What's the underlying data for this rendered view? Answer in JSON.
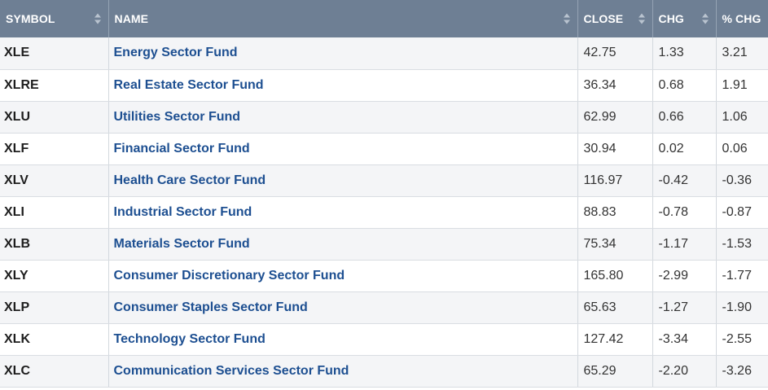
{
  "table": {
    "headers": {
      "symbol": "SYMBOL",
      "name": "NAME",
      "close": "CLOSE",
      "chg": "CHG",
      "pchg": "% CHG"
    },
    "rows": [
      {
        "symbol": "XLE",
        "name": "Energy Sector Fund",
        "close": "42.75",
        "chg": "1.33",
        "pchg": "3.21"
      },
      {
        "symbol": "XLRE",
        "name": "Real Estate Sector Fund",
        "close": "36.34",
        "chg": "0.68",
        "pchg": "1.91"
      },
      {
        "symbol": "XLU",
        "name": "Utilities Sector Fund",
        "close": "62.99",
        "chg": "0.66",
        "pchg": "1.06"
      },
      {
        "symbol": "XLF",
        "name": "Financial Sector Fund",
        "close": "30.94",
        "chg": "0.02",
        "pchg": "0.06"
      },
      {
        "symbol": "XLV",
        "name": "Health Care Sector Fund",
        "close": "116.97",
        "chg": "-0.42",
        "pchg": "-0.36"
      },
      {
        "symbol": "XLI",
        "name": "Industrial Sector Fund",
        "close": "88.83",
        "chg": "-0.78",
        "pchg": "-0.87"
      },
      {
        "symbol": "XLB",
        "name": "Materials Sector Fund",
        "close": "75.34",
        "chg": "-1.17",
        "pchg": "-1.53"
      },
      {
        "symbol": "XLY",
        "name": "Consumer Discretionary Sector Fund",
        "close": "165.80",
        "chg": "-2.99",
        "pchg": "-1.77"
      },
      {
        "symbol": "XLP",
        "name": "Consumer Staples Sector Fund",
        "close": "65.63",
        "chg": "-1.27",
        "pchg": "-1.90"
      },
      {
        "symbol": "XLK",
        "name": "Technology Sector Fund",
        "close": "127.42",
        "chg": "-3.34",
        "pchg": "-2.55"
      },
      {
        "symbol": "XLC",
        "name": "Communication Services Sector Fund",
        "close": "65.29",
        "chg": "-2.20",
        "pchg": "-3.26"
      }
    ]
  },
  "icons": {
    "sort": "sort-both-icon"
  },
  "colors": {
    "header_bg": "#6e7f94",
    "header_text": "#ffffff",
    "link": "#1d4f91",
    "row_alt": "#f4f5f7"
  }
}
